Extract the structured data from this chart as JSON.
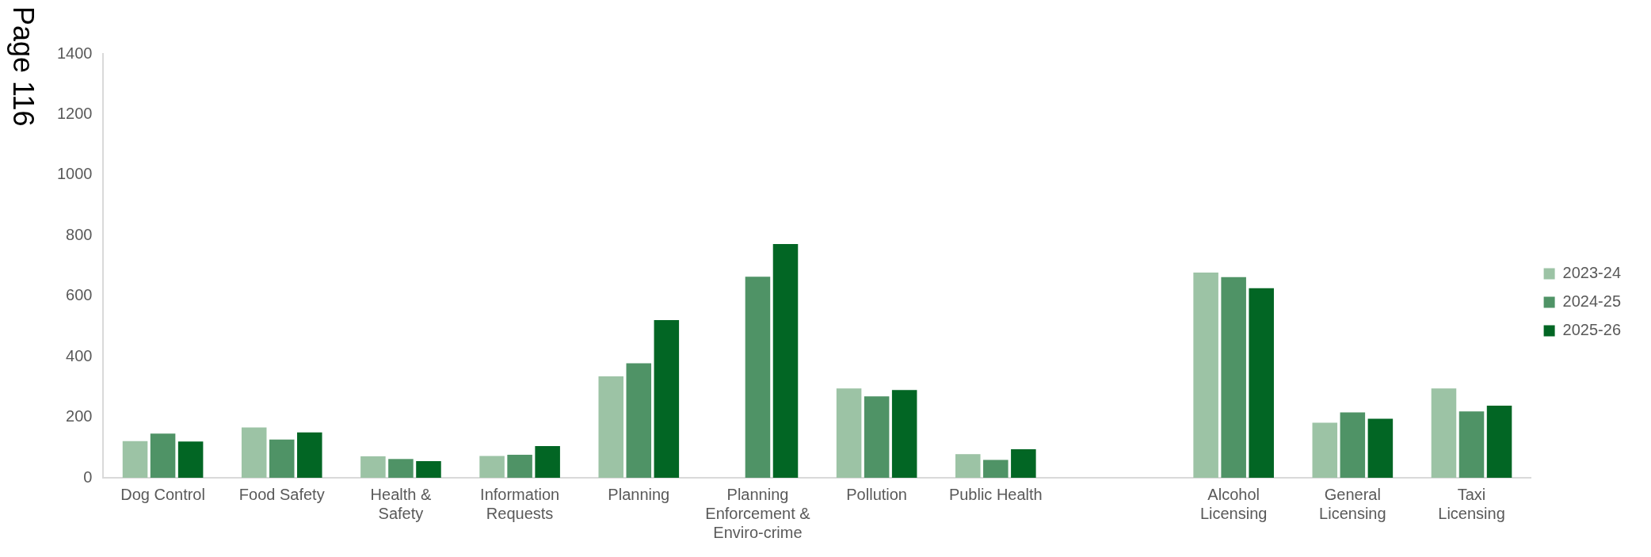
{
  "chart_data": {
    "type": "bar",
    "categories": [
      "Dog Control",
      "Food Safety",
      "Health & Safety",
      "Information Requests",
      "Planning",
      "Planning Enforcement & Enviro-crime",
      "Pollution",
      "Public Health",
      null,
      "Alcohol Licensing",
      "General Licensing",
      "Taxi Licensing"
    ],
    "series": [
      {
        "name": "2023-24",
        "color": "#9cc3a5",
        "values": [
          121,
          166,
          71,
          72,
          335,
          null,
          295,
          78,
          null,
          678,
          182,
          295
        ]
      },
      {
        "name": "2024-25",
        "color": "#4f9366",
        "values": [
          146,
          126,
          62,
          76,
          378,
          664,
          269,
          59,
          null,
          663,
          216,
          219
        ]
      },
      {
        "name": "2025-26",
        "color": "#026624",
        "values": [
          120,
          150,
          55,
          105,
          521,
          772,
          290,
          94,
          null,
          626,
          195,
          238
        ]
      }
    ],
    "ylim": [
      0,
      1400
    ],
    "yticks": [
      0,
      200,
      400,
      600,
      800,
      1000,
      1200,
      1400
    ],
    "grid": false,
    "legend": "right",
    "annotations": [
      "Page 116"
    ]
  }
}
